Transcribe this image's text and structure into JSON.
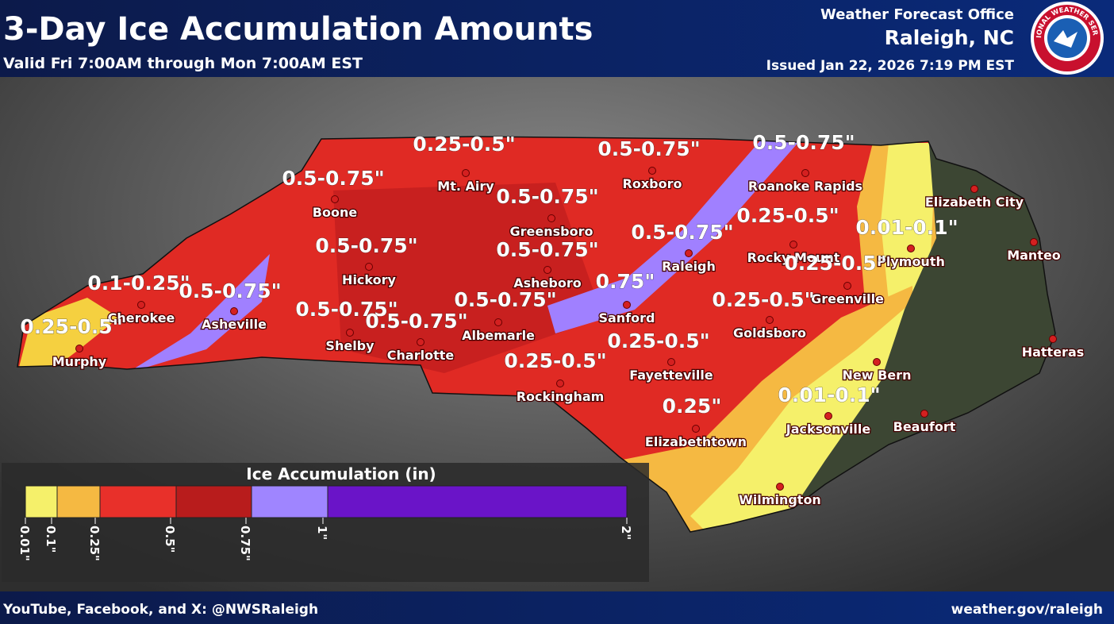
{
  "header": {
    "title": "3-Day Ice Accumulation Amounts",
    "subtitle": "Valid Fri 7:00AM through Mon 7:00AM EST",
    "office": "Weather Forecast Office",
    "location": "Raleigh, NC",
    "issued": "Issued Jan 22, 2026 7:19 PM EST",
    "logo_text": "NATIONAL WEATHER SERVICE"
  },
  "amounts": [
    "0.25-0.5\"",
    "0.5-0.75\"",
    "0.5-0.75\"",
    "0.5-0.75\"",
    "0.5-0.75\"",
    "0.25-0.5\"",
    "0.01-0.1\"",
    "0.5-0.75\"",
    "0.5-0.75\"",
    "0.5-0.75\"",
    "0.25-0.5\"",
    "0.1-0.25\"",
    "0.5-0.75\"",
    "0.75\"",
    "0.5-0.75\"",
    "0.25-0.5\"",
    "0.5-0.75\"",
    "0.5-0.75\"",
    "0.25-0.5\"",
    "0.25-0.5\"",
    "0.25-0.5\"",
    "0.25\"",
    "0.01-0.1\""
  ],
  "cities": [
    "Boone",
    "Mt. Airy",
    "Roxboro",
    "Roanoke Rapids",
    "Elizabeth City",
    "Manteo",
    "Greensboro",
    "Raleigh",
    "Rocky Mount",
    "Plymouth",
    "Hickory",
    "Asheboro",
    "Greenville",
    "Cherokee",
    "Asheville",
    "Shelby",
    "Charlotte",
    "Albemarle",
    "Sanford",
    "Goldsboro",
    "Murphy",
    "Hatteras",
    "New Bern",
    "Fayetteville",
    "Rockingham",
    "Elizabethtown",
    "Jacksonville",
    "Beaufort",
    "Wilmington"
  ],
  "legend": {
    "title": "Ice Accumulation (in)",
    "colors": [
      "#f5f06a",
      "#f5b942",
      "#e8302a",
      "#b81c1c",
      "#9f85ff",
      "#6a14c8"
    ],
    "ticks": [
      "0.01\"",
      "0.1\"",
      "0.25\"",
      "0.5\"",
      "0.75\"",
      "1\"",
      "2\""
    ]
  },
  "footer": {
    "social": "YouTube, Facebook, and X: @NWSRaleigh",
    "website": "weather.gov/raleigh"
  }
}
